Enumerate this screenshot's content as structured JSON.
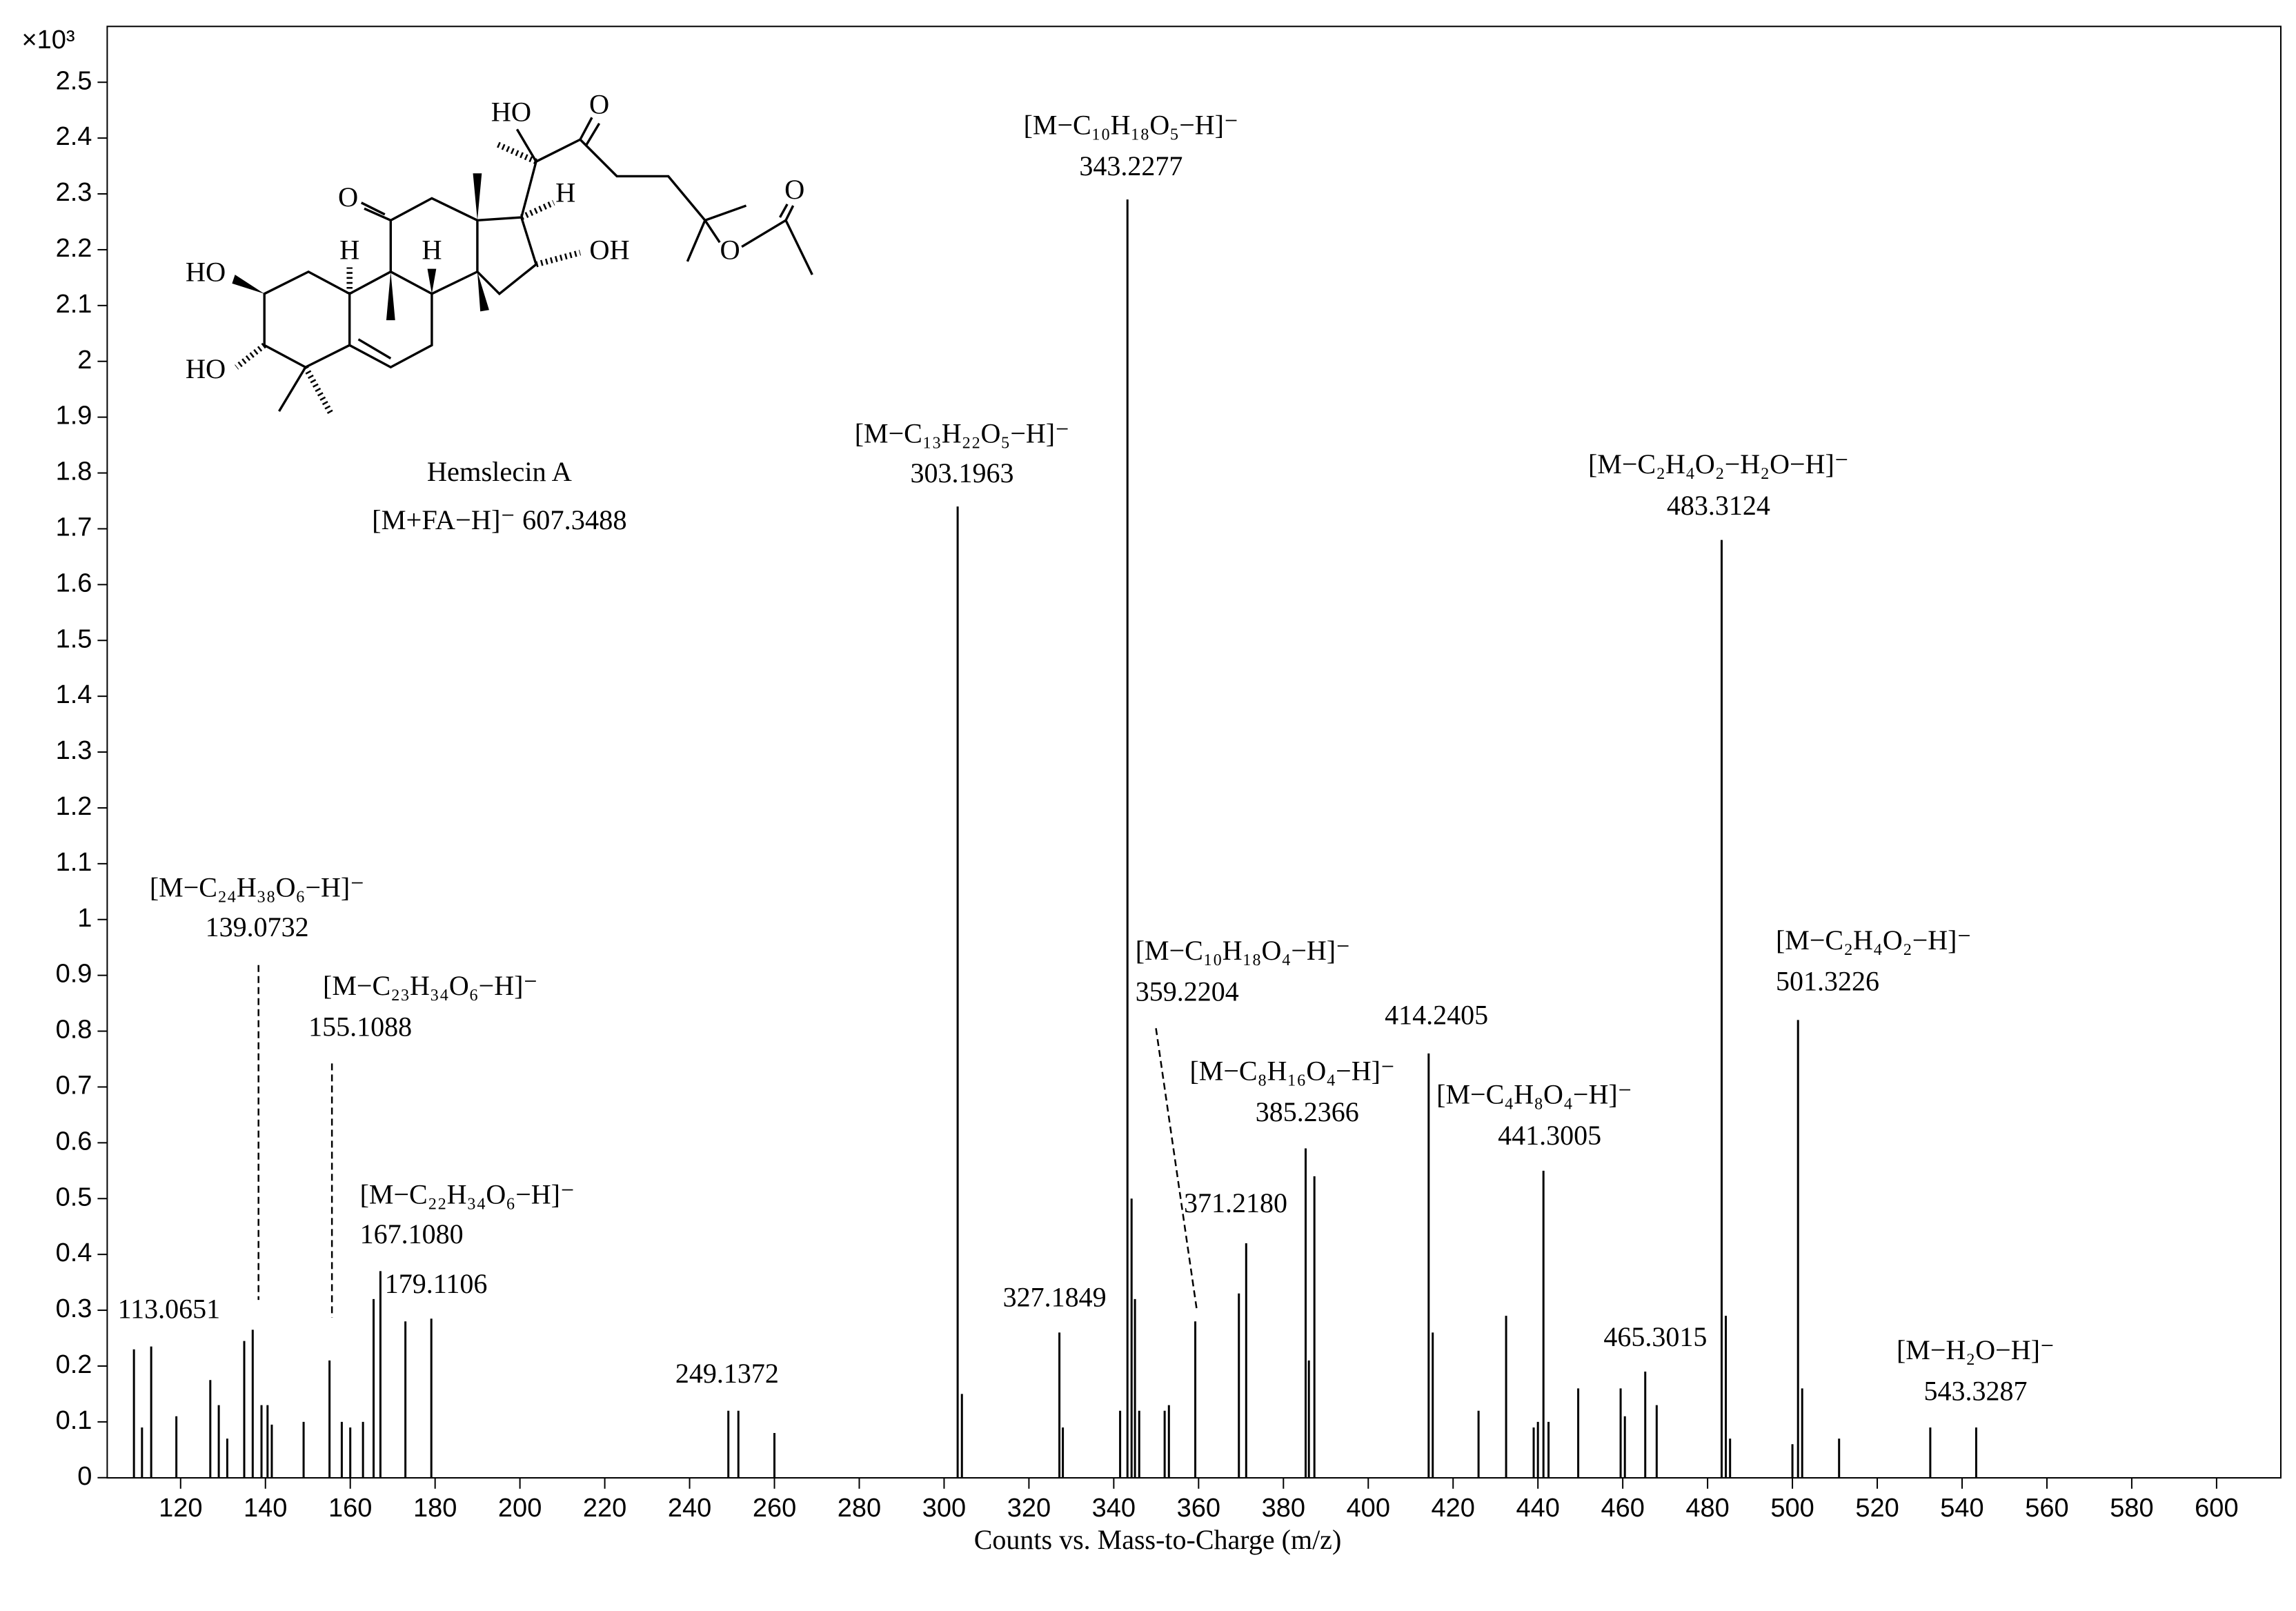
{
  "chart_data": {
    "type": "stem",
    "x_label": "Counts vs. Mass-to-Charge (m/z)",
    "y_multiplier": "×10³",
    "color": "#000000",
    "xlim": [
      102.7,
      615.2
    ],
    "ylim": [
      0,
      2.6
    ],
    "xticks": [
      120,
      140,
      160,
      180,
      200,
      220,
      240,
      260,
      280,
      300,
      320,
      340,
      360,
      380,
      400,
      420,
      440,
      460,
      480,
      500,
      520,
      540,
      560,
      580,
      600
    ],
    "yticks": [
      0,
      0.1,
      0.2,
      0.3,
      0.4,
      0.5,
      0.6,
      0.7,
      0.8,
      0.9,
      1,
      1.1,
      1.2,
      1.3,
      1.4,
      1.5,
      1.6,
      1.7,
      1.8,
      1.9,
      2,
      2.1,
      2.2,
      2.3,
      2.4,
      2.5
    ],
    "x": [
      109.0,
      110.9,
      113.0651,
      119.0,
      127.0,
      129.0,
      131.0,
      135.0,
      137.0,
      139.0732,
      140.5,
      141.5,
      149.0,
      155.1088,
      158.0,
      160.0,
      163.0,
      165.5,
      167.108,
      173.0,
      179.1106,
      249.1372,
      251.5,
      260.0,
      303.1963,
      304.2,
      327.1849,
      328.0,
      341.5,
      343.2277,
      344.2,
      345.0,
      346.0,
      352.0,
      353.0,
      359.2204,
      369.5,
      371.218,
      385.2366,
      386.0,
      387.3,
      414.2405,
      415.2,
      426.0,
      432.5,
      439.0,
      440.0,
      441.3005,
      442.5,
      449.5,
      459.5,
      460.5,
      465.3015,
      468.0,
      483.3124,
      484.3,
      485.3,
      500.0,
      501.3226,
      502.3,
      511.0,
      532.5,
      543.3287
    ],
    "values": [
      0.23,
      0.09,
      0.235,
      0.11,
      0.175,
      0.13,
      0.07,
      0.245,
      0.265,
      0.13,
      0.13,
      0.095,
      0.1,
      0.21,
      0.1,
      0.09,
      0.1,
      0.32,
      0.37,
      0.28,
      0.285,
      0.12,
      0.12,
      0.08,
      1.74,
      0.15,
      0.26,
      0.09,
      0.12,
      2.29,
      0.5,
      0.32,
      0.12,
      0.12,
      0.13,
      0.28,
      0.33,
      0.42,
      0.59,
      0.21,
      0.54,
      0.76,
      0.26,
      0.12,
      0.29,
      0.09,
      0.1,
      0.55,
      0.1,
      0.16,
      0.16,
      0.11,
      0.19,
      0.13,
      1.68,
      0.29,
      0.07,
      0.06,
      0.82,
      0.16,
      0.07,
      0.09,
      0.09
    ],
    "point_labels": [
      null,
      null,
      "113.0651",
      null,
      null,
      null,
      null,
      null,
      null,
      "139.0732",
      null,
      null,
      null,
      "155.1088",
      null,
      null,
      null,
      null,
      "167.1080",
      null,
      "179.1106",
      "249.1372",
      null,
      null,
      "303.1963",
      null,
      "327.1849",
      null,
      null,
      "343.2277",
      null,
      null,
      null,
      null,
      null,
      "359.2204",
      null,
      "371.2180",
      "385.2366",
      null,
      null,
      "414.2405",
      null,
      null,
      null,
      null,
      null,
      "441.3005",
      null,
      null,
      null,
      null,
      "465.3015",
      null,
      "483.3124",
      null,
      null,
      null,
      "501.3226",
      null,
      null,
      null,
      "543.3287"
    ],
    "point_formulas": [
      null,
      null,
      null,
      null,
      null,
      null,
      null,
      null,
      null,
      "[M−C₂₄H₃₈O₆−H]⁻",
      null,
      null,
      null,
      "[M−C₂₃H₃₄O₆−H]⁻",
      null,
      null,
      null,
      null,
      "[M−C₂₂H₃₄O₆−H]⁻",
      null,
      null,
      null,
      null,
      null,
      "[M−C₁₃H₂₂O₅−H]⁻",
      null,
      null,
      null,
      null,
      "[M−C₁₀H₁₈O₅−H]⁻",
      null,
      null,
      null,
      null,
      null,
      "[M−C₁₀H₁₈O₄−H]⁻",
      null,
      null,
      "[M−C₈H₁₆O₄−H]⁻",
      null,
      null,
      null,
      null,
      null,
      null,
      null,
      null,
      "[M−C₄H₈O₄−H]⁻",
      null,
      null,
      null,
      null,
      null,
      null,
      "[M−C₂H₄O₂−H₂O−H]⁻",
      null,
      null,
      null,
      "[M−C₂H₄O₂−H]⁻",
      null,
      null,
      null,
      "[M−H₂O−H]⁻"
    ]
  },
  "molecule": {
    "name": "Hemslecin A",
    "ion": "[M+FA−H]⁻ 607.3488",
    "atoms": [
      "HO",
      "O",
      "H",
      "O",
      "H",
      "H",
      "OH",
      "HO",
      "HO",
      "O",
      "O"
    ]
  }
}
